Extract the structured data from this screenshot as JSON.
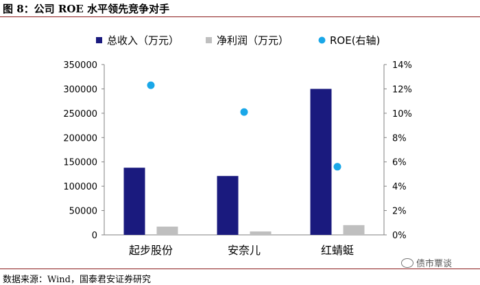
{
  "figure": {
    "title": "图 8：公司 ROE 水平领先竞争对手",
    "source": "数据来源：Wind，国泰君安证券研究",
    "watermark": "债市覃谈"
  },
  "colors": {
    "revenue": "#1a1a7e",
    "profit": "#bfbfbf",
    "roe": "#1aa7e8",
    "rule": "#8b1c1c"
  },
  "chart_data": {
    "type": "bar",
    "categories": [
      "起步股份",
      "安奈儿",
      "红蜻蜓"
    ],
    "series": [
      {
        "name": "总收入（万元）",
        "type": "bar",
        "axis": "left",
        "values": [
          138000,
          121000,
          300000
        ]
      },
      {
        "name": "净利润（万元）",
        "type": "bar",
        "axis": "left",
        "values": [
          17000,
          7000,
          20000
        ]
      },
      {
        "name": "ROE(右轴)",
        "type": "scatter",
        "axis": "right",
        "values": [
          0.123,
          0.101,
          0.056
        ]
      }
    ],
    "ylim": [
      0,
      350000
    ],
    "y2lim": [
      0,
      0.14
    ],
    "yticks": [
      "0",
      "50000",
      "100000",
      "150000",
      "200000",
      "250000",
      "300000",
      "350000"
    ],
    "y2ticks": [
      "0%",
      "2%",
      "4%",
      "6%",
      "8%",
      "10%",
      "12%",
      "14%"
    ],
    "legend_position": "top",
    "grid": false
  }
}
